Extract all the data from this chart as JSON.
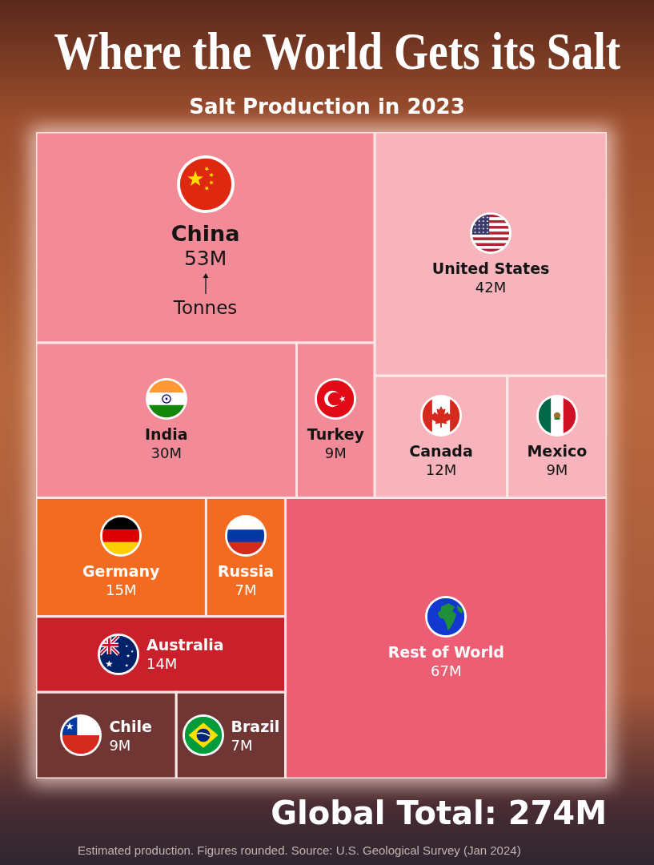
{
  "chart_data": {
    "type": "other",
    "title": "Where the World Gets its Salt",
    "subtitle": "Salt Production in 2023",
    "categories": [
      "China",
      "India",
      "Turkey",
      "United States",
      "Canada",
      "Mexico",
      "Germany",
      "Russia",
      "Australia",
      "Chile",
      "Brazil",
      "Rest of World"
    ],
    "values": [
      53,
      30,
      9,
      42,
      12,
      9,
      15,
      7,
      14,
      9,
      7,
      67
    ],
    "value_labels": [
      "53M",
      "30M",
      "9M",
      "42M",
      "12M",
      "9M",
      "15M",
      "7M",
      "14M",
      "9M",
      "7M",
      "67M"
    ],
    "colors": [
      "#f28b97",
      "#f28b97",
      "#f28b97",
      "#f7b4bc",
      "#f7b4bc",
      "#f7b4bc",
      "#f26b21",
      "#f26b21",
      "#c9202b",
      "#6f3634",
      "#6f3634",
      "#ec5e73"
    ],
    "annotations": [
      "Tonnes",
      "Global Total: 274M",
      "Estimated production. Figures rounded. Source: U.S. Geological Survey (Jan 2024)"
    ]
  }
}
